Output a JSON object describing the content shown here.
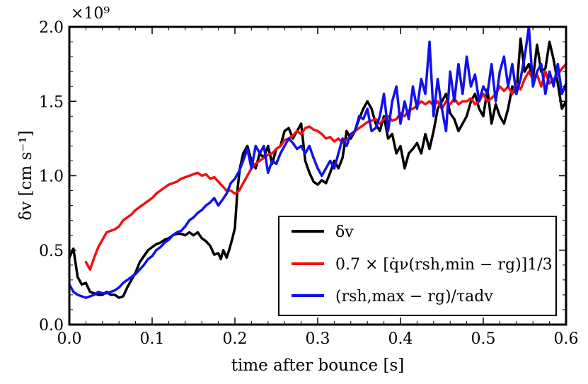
{
  "chart_data": {
    "type": "line",
    "title": "",
    "xlabel": "time after bounce [s]",
    "ylabel": "δv [cm s⁻¹]",
    "y_multiplier": "×10⁹",
    "xlim": [
      0.0,
      0.6
    ],
    "ylim": [
      0.0,
      2.0
    ],
    "xticks": [
      0.0,
      0.1,
      0.2,
      0.3,
      0.4,
      0.5,
      0.6
    ],
    "xtick_labels": [
      "0.0",
      "0.1",
      "0.2",
      "0.3",
      "0.4",
      "0.5",
      "0.6"
    ],
    "yticks": [
      0.0,
      0.5,
      1.0,
      1.5,
      2.0
    ],
    "ytick_labels": [
      "0.0",
      "0.5",
      "1.0",
      "1.5",
      "2.0"
    ],
    "grid": false,
    "legend_position": "lower-right",
    "series": [
      {
        "name": "δv",
        "color": "#000000",
        "x": [
          0.0,
          0.005,
          0.01,
          0.015,
          0.02,
          0.025,
          0.03,
          0.035,
          0.04,
          0.045,
          0.05,
          0.055,
          0.06,
          0.065,
          0.07,
          0.075,
          0.08,
          0.085,
          0.09,
          0.095,
          0.1,
          0.105,
          0.11,
          0.115,
          0.12,
          0.125,
          0.13,
          0.135,
          0.14,
          0.145,
          0.15,
          0.155,
          0.16,
          0.165,
          0.17,
          0.175,
          0.18,
          0.183,
          0.186,
          0.19,
          0.193,
          0.197,
          0.2,
          0.203,
          0.206,
          0.21,
          0.215,
          0.22,
          0.225,
          0.23,
          0.235,
          0.24,
          0.245,
          0.25,
          0.255,
          0.26,
          0.265,
          0.27,
          0.275,
          0.28,
          0.285,
          0.29,
          0.295,
          0.3,
          0.305,
          0.31,
          0.315,
          0.32,
          0.325,
          0.33,
          0.335,
          0.34,
          0.345,
          0.35,
          0.355,
          0.36,
          0.365,
          0.37,
          0.375,
          0.38,
          0.385,
          0.39,
          0.395,
          0.4,
          0.405,
          0.41,
          0.415,
          0.42,
          0.425,
          0.43,
          0.435,
          0.44,
          0.445,
          0.45,
          0.455,
          0.46,
          0.465,
          0.47,
          0.475,
          0.48,
          0.485,
          0.49,
          0.495,
          0.5,
          0.505,
          0.51,
          0.515,
          0.52,
          0.525,
          0.53,
          0.535,
          0.54,
          0.545,
          0.55,
          0.555,
          0.56,
          0.565,
          0.57,
          0.575,
          0.58,
          0.585,
          0.59,
          0.595,
          0.6
        ],
        "y": [
          0.45,
          0.51,
          0.32,
          0.27,
          0.28,
          0.22,
          0.21,
          0.2,
          0.2,
          0.22,
          0.2,
          0.2,
          0.18,
          0.19,
          0.25,
          0.3,
          0.35,
          0.42,
          0.46,
          0.5,
          0.52,
          0.54,
          0.55,
          0.57,
          0.58,
          0.6,
          0.61,
          0.61,
          0.6,
          0.62,
          0.6,
          0.62,
          0.58,
          0.56,
          0.53,
          0.47,
          0.48,
          0.44,
          0.5,
          0.45,
          0.5,
          0.58,
          0.65,
          0.9,
          1.05,
          1.15,
          1.2,
          1.1,
          1.05,
          1.15,
          1.12,
          1.2,
          1.08,
          1.18,
          1.2,
          1.3,
          1.32,
          1.25,
          1.3,
          1.35,
          1.1,
          1.02,
          0.96,
          0.94,
          0.97,
          0.95,
          1.02,
          1.1,
          1.05,
          1.12,
          1.3,
          1.25,
          1.3,
          1.38,
          1.45,
          1.5,
          1.45,
          1.35,
          1.3,
          1.4,
          1.25,
          1.28,
          1.15,
          1.2,
          1.05,
          1.15,
          1.18,
          1.22,
          1.15,
          1.28,
          1.18,
          1.3,
          1.45,
          1.5,
          1.55,
          1.42,
          1.38,
          1.3,
          1.35,
          1.4,
          1.5,
          1.55,
          1.45,
          1.4,
          1.58,
          1.35,
          1.48,
          1.4,
          1.35,
          1.45,
          1.6,
          1.55,
          1.92,
          1.7,
          1.75,
          1.65,
          1.88,
          1.7,
          1.72,
          1.9,
          1.78,
          1.62,
          1.45,
          1.5
        ]
      },
      {
        "name": "0.7 × [q̇ν(rsh,min − rg)]1/3",
        "color": "#ee1111",
        "x": [
          0.02,
          0.025,
          0.03,
          0.035,
          0.04,
          0.045,
          0.05,
          0.055,
          0.06,
          0.065,
          0.07,
          0.075,
          0.08,
          0.085,
          0.09,
          0.095,
          0.1,
          0.105,
          0.11,
          0.115,
          0.12,
          0.125,
          0.13,
          0.135,
          0.14,
          0.145,
          0.15,
          0.155,
          0.16,
          0.165,
          0.17,
          0.175,
          0.18,
          0.185,
          0.19,
          0.195,
          0.2,
          0.205,
          0.21,
          0.215,
          0.22,
          0.225,
          0.23,
          0.235,
          0.24,
          0.245,
          0.25,
          0.255,
          0.26,
          0.265,
          0.27,
          0.275,
          0.28,
          0.285,
          0.29,
          0.295,
          0.3,
          0.305,
          0.31,
          0.315,
          0.32,
          0.325,
          0.33,
          0.335,
          0.34,
          0.345,
          0.35,
          0.355,
          0.36,
          0.365,
          0.37,
          0.375,
          0.38,
          0.385,
          0.39,
          0.395,
          0.4,
          0.405,
          0.41,
          0.415,
          0.42,
          0.425,
          0.43,
          0.435,
          0.44,
          0.445,
          0.45,
          0.455,
          0.46,
          0.465,
          0.47,
          0.475,
          0.48,
          0.485,
          0.49,
          0.495,
          0.5,
          0.505,
          0.51,
          0.515,
          0.52,
          0.525,
          0.53,
          0.535,
          0.54,
          0.545,
          0.55,
          0.555,
          0.56,
          0.565,
          0.57,
          0.575,
          0.58,
          0.585,
          0.59,
          0.595,
          0.6
        ],
        "y": [
          0.42,
          0.37,
          0.45,
          0.52,
          0.57,
          0.62,
          0.63,
          0.64,
          0.66,
          0.7,
          0.72,
          0.74,
          0.77,
          0.79,
          0.81,
          0.83,
          0.85,
          0.88,
          0.9,
          0.92,
          0.94,
          0.95,
          0.96,
          0.98,
          0.99,
          1.0,
          1.01,
          1.02,
          1.0,
          1.01,
          0.98,
          0.99,
          0.96,
          0.93,
          0.9,
          0.9,
          0.88,
          0.9,
          0.95,
          1.0,
          1.05,
          1.08,
          1.1,
          1.12,
          1.14,
          1.15,
          1.18,
          1.2,
          1.24,
          1.25,
          1.27,
          1.3,
          1.28,
          1.32,
          1.33,
          1.31,
          1.3,
          1.28,
          1.25,
          1.26,
          1.23,
          1.25,
          1.22,
          1.24,
          1.27,
          1.3,
          1.32,
          1.34,
          1.36,
          1.37,
          1.38,
          1.35,
          1.38,
          1.4,
          1.37,
          1.38,
          1.42,
          1.4,
          1.44,
          1.45,
          1.47,
          1.5,
          1.48,
          1.5,
          1.47,
          1.5,
          1.45,
          1.5,
          1.48,
          1.52,
          1.48,
          1.5,
          1.5,
          1.52,
          1.48,
          1.5,
          1.55,
          1.5,
          1.52,
          1.55,
          1.6,
          1.57,
          1.6,
          1.55,
          1.62,
          1.58,
          1.65,
          1.7,
          1.65,
          1.68,
          1.6,
          1.7,
          1.62,
          1.65,
          1.68,
          1.72,
          1.75
        ]
      },
      {
        "name": "(rsh,max − rg)/τadv",
        "color": "#1111ee",
        "x": [
          0.0,
          0.005,
          0.01,
          0.015,
          0.02,
          0.025,
          0.03,
          0.035,
          0.04,
          0.045,
          0.05,
          0.055,
          0.06,
          0.065,
          0.07,
          0.075,
          0.08,
          0.085,
          0.09,
          0.095,
          0.1,
          0.105,
          0.11,
          0.115,
          0.12,
          0.125,
          0.13,
          0.135,
          0.14,
          0.145,
          0.15,
          0.155,
          0.16,
          0.165,
          0.17,
          0.175,
          0.18,
          0.185,
          0.19,
          0.195,
          0.2,
          0.205,
          0.21,
          0.215,
          0.22,
          0.225,
          0.23,
          0.235,
          0.24,
          0.245,
          0.25,
          0.255,
          0.26,
          0.265,
          0.27,
          0.275,
          0.28,
          0.285,
          0.29,
          0.295,
          0.3,
          0.305,
          0.31,
          0.315,
          0.32,
          0.325,
          0.33,
          0.335,
          0.34,
          0.345,
          0.35,
          0.355,
          0.36,
          0.365,
          0.37,
          0.375,
          0.38,
          0.385,
          0.39,
          0.395,
          0.4,
          0.405,
          0.41,
          0.415,
          0.42,
          0.425,
          0.43,
          0.435,
          0.44,
          0.445,
          0.45,
          0.455,
          0.46,
          0.465,
          0.47,
          0.475,
          0.48,
          0.485,
          0.49,
          0.495,
          0.5,
          0.505,
          0.51,
          0.515,
          0.52,
          0.525,
          0.53,
          0.535,
          0.54,
          0.545,
          0.55,
          0.555,
          0.56,
          0.565,
          0.57,
          0.575,
          0.58,
          0.585,
          0.59,
          0.595,
          0.6
        ],
        "y": [
          0.27,
          0.22,
          0.2,
          0.19,
          0.18,
          0.19,
          0.2,
          0.22,
          0.21,
          0.21,
          0.22,
          0.23,
          0.25,
          0.28,
          0.3,
          0.32,
          0.34,
          0.37,
          0.4,
          0.44,
          0.46,
          0.5,
          0.52,
          0.55,
          0.57,
          0.6,
          0.62,
          0.63,
          0.66,
          0.7,
          0.72,
          0.75,
          0.77,
          0.8,
          0.82,
          0.85,
          0.8,
          0.84,
          0.88,
          0.95,
          0.98,
          1.03,
          1.1,
          1.18,
          1.05,
          1.2,
          1.15,
          1.2,
          1.02,
          1.1,
          1.08,
          1.15,
          1.2,
          1.25,
          1.22,
          1.18,
          1.2,
          1.15,
          1.2,
          1.12,
          1.05,
          1.0,
          1.05,
          1.1,
          1.05,
          1.15,
          1.25,
          1.2,
          1.28,
          1.3,
          1.4,
          1.38,
          1.45,
          1.3,
          1.32,
          1.4,
          1.55,
          1.3,
          1.5,
          1.6,
          1.35,
          1.5,
          1.38,
          1.6,
          1.45,
          1.65,
          1.55,
          1.9,
          1.4,
          1.65,
          1.45,
          1.3,
          1.7,
          1.5,
          1.75,
          1.55,
          1.8,
          1.6,
          1.68,
          1.5,
          1.6,
          1.55,
          1.75,
          1.5,
          1.7,
          1.8,
          1.6,
          1.75,
          1.55,
          1.65,
          1.8,
          2.0,
          1.6,
          1.7,
          1.75,
          1.55,
          1.7,
          1.6,
          1.75,
          1.55,
          1.62
        ]
      }
    ]
  },
  "colors": {
    "axis": "#000000",
    "background": "#ffffff"
  }
}
